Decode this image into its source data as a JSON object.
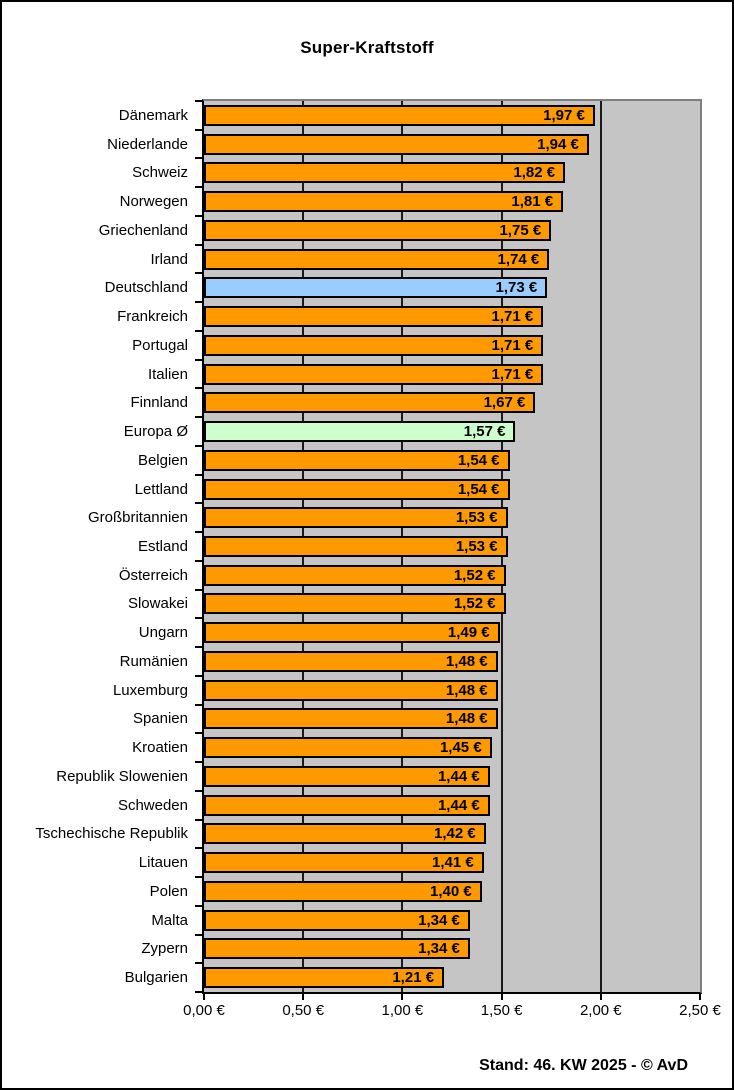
{
  "chart_data": {
    "type": "bar",
    "orientation": "horizontal",
    "title": "Super-Kraftstoff",
    "footer": "Stand: 46. KW 2025 - © AvD",
    "categories": [
      "Dänemark",
      "Niederlande",
      "Schweiz",
      "Norwegen",
      "Griechenland",
      "Irland",
      "Deutschland",
      "Frankreich",
      "Portugal",
      "Italien",
      "Finnland",
      "Europa Ø",
      "Belgien",
      "Lettland",
      "Großbritannien",
      "Estland",
      "Österreich",
      "Slowakei",
      "Ungarn",
      "Rumänien",
      "Luxemburg",
      "Spanien",
      "Kroatien",
      "Republik Slowenien",
      "Schweden",
      "Tschechische Republik",
      "Litauen",
      "Polen",
      "Malta",
      "Zypern",
      "Bulgarien"
    ],
    "values": [
      1.97,
      1.94,
      1.82,
      1.81,
      1.75,
      1.74,
      1.73,
      1.71,
      1.71,
      1.71,
      1.67,
      1.57,
      1.54,
      1.54,
      1.53,
      1.53,
      1.52,
      1.52,
      1.49,
      1.48,
      1.48,
      1.48,
      1.45,
      1.44,
      1.44,
      1.42,
      1.41,
      1.4,
      1.34,
      1.34,
      1.21
    ],
    "value_labels": [
      "1,97 €",
      "1,94 €",
      "1,82 €",
      "1,81 €",
      "1,75 €",
      "1,74 €",
      "1,73 €",
      "1,71 €",
      "1,71 €",
      "1,71 €",
      "1,67 €",
      "1,57 €",
      "1,54 €",
      "1,54 €",
      "1,53 €",
      "1,53 €",
      "1,52 €",
      "1,52 €",
      "1,49 €",
      "1,48 €",
      "1,48 €",
      "1,48 €",
      "1,45 €",
      "1,44 €",
      "1,44 €",
      "1,42 €",
      "1,41 €",
      "1,40 €",
      "1,34 €",
      "1,34 €",
      "1,21 €"
    ],
    "xlim": [
      0,
      2.5
    ],
    "x_tick_values": [
      0,
      0.5,
      1.0,
      1.5,
      2.0,
      2.5
    ],
    "x_tick_labels": [
      "0,00 €",
      "0,50 €",
      "1,00 €",
      "1,50 €",
      "2,00 €",
      "2,50 €"
    ],
    "grid": "vertical-major",
    "legend": "none",
    "bar_color_default": "#FF9900",
    "highlights": [
      {
        "index": 6,
        "category": "Deutschland",
        "color": "#99CCFF"
      },
      {
        "index": 11,
        "category": "Europa Ø",
        "color": "#CCFFCC"
      }
    ],
    "plot_background": "#C5C5C5",
    "bar_border_color": "#000000"
  }
}
